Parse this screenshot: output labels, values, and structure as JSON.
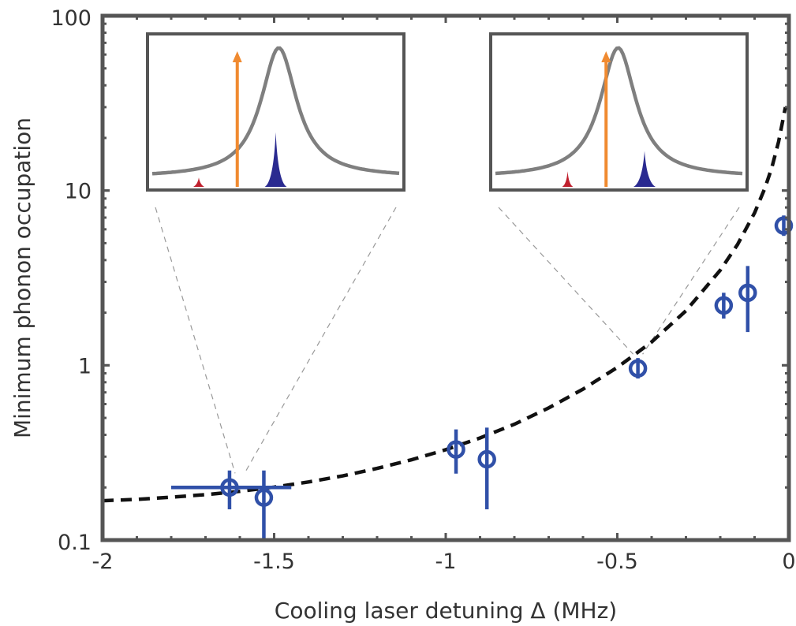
{
  "chart_data": {
    "type": "scatter",
    "title": "",
    "xlabel": "Cooling laser detuning  Δ  (MHz)",
    "ylabel": "Minimum phonon occupation",
    "xlim": [
      -2,
      0
    ],
    "ylim": [
      0.1,
      100
    ],
    "yscale": "log",
    "x_ticks": [
      -2,
      -1.5,
      -1,
      -0.5,
      0
    ],
    "x_tick_labels": [
      "-2",
      "-1.5",
      "-1",
      "-0.5",
      "0"
    ],
    "y_ticks": [
      0.1,
      1,
      10,
      100
    ],
    "y_tick_labels": [
      "0.1",
      "1",
      "10",
      "100"
    ],
    "grid": false,
    "colors": {
      "data": "#3050a8",
      "fit": "#111111",
      "inset_curve": "#7f7f7f",
      "laser_arrow": "#f08a30",
      "sideband_blue": "#2a2a90",
      "sideband_red": "#c0202e",
      "frame": "#555555"
    },
    "series": [
      {
        "type": "errorbar",
        "points": [
          {
            "x": -1.63,
            "y": 0.2,
            "ylo": 0.15,
            "yhi": 0.25,
            "xlo": -1.8,
            "xhi": -1.45
          },
          {
            "x": -1.53,
            "y": 0.175,
            "ylo": 0.1,
            "yhi": 0.25
          },
          {
            "x": -0.97,
            "y": 0.33,
            "ylo": 0.24,
            "yhi": 0.43
          },
          {
            "x": -0.88,
            "y": 0.29,
            "ylo": 0.15,
            "yhi": 0.44
          },
          {
            "x": -0.44,
            "y": 0.96,
            "ylo": 0.84,
            "yhi": 1.1
          },
          {
            "x": -0.19,
            "y": 2.2,
            "ylo": 1.85,
            "yhi": 2.6
          },
          {
            "x": -0.12,
            "y": 2.6,
            "ylo": 1.55,
            "yhi": 3.7
          },
          {
            "x": -0.015,
            "y": 6.3,
            "ylo": 5.5,
            "yhi": 7.2
          }
        ]
      },
      {
        "type": "line",
        "style": "dashed",
        "x": [
          -2.0,
          -1.9,
          -1.8,
          -1.7,
          -1.6,
          -1.5,
          -1.4,
          -1.3,
          -1.2,
          -1.1,
          -1.0,
          -0.9,
          -0.8,
          -0.7,
          -0.6,
          -0.5,
          -0.4,
          -0.3,
          -0.2,
          -0.15,
          -0.1,
          -0.07,
          -0.05,
          -0.03,
          -0.01
        ],
        "y": [
          0.168,
          0.171,
          0.176,
          0.182,
          0.19,
          0.201,
          0.215,
          0.233,
          0.257,
          0.288,
          0.329,
          0.384,
          0.46,
          0.57,
          0.73,
          0.973,
          1.36,
          2.05,
          3.5,
          4.9,
          7.45,
          10.3,
          13.5,
          19.0,
          30.0
        ]
      }
    ],
    "insets": [
      {
        "position": "upper-left",
        "connects_to_x": -1.6,
        "connects_to_y": 0.2,
        "laser_pos": 0.35,
        "blue_pos": 0.5,
        "blue_height": 0.35,
        "red_pos": 0.2,
        "red_height": 0.06
      },
      {
        "position": "upper-right",
        "connects_to_x": -0.44,
        "connects_to_y": 0.96,
        "laser_pos": 0.45,
        "blue_pos": 0.6,
        "blue_height": 0.23,
        "red_pos": 0.3,
        "red_height": 0.1
      }
    ]
  }
}
